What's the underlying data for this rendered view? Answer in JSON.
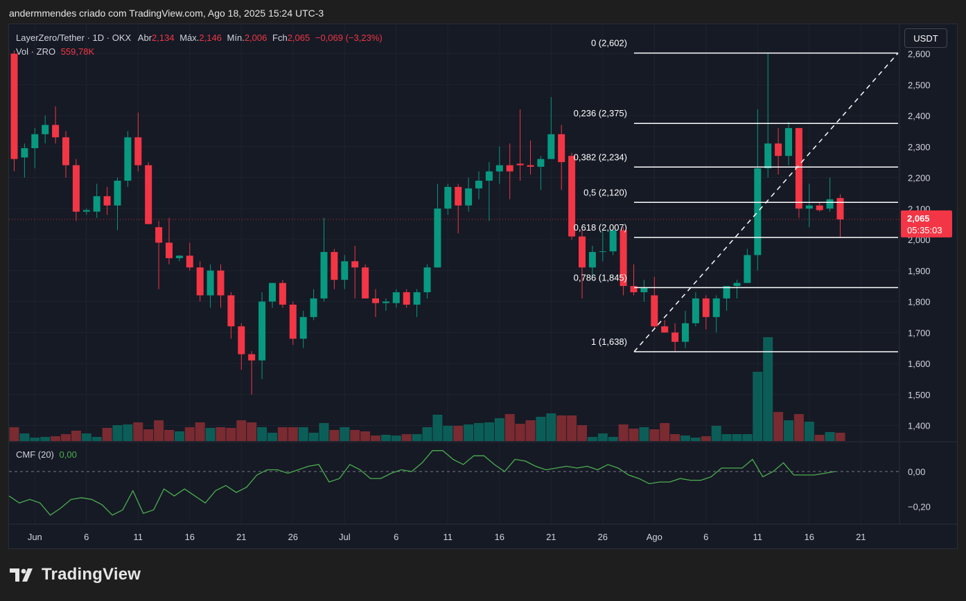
{
  "caption": "andermmendes criado com TradingView.com, Ago 18, 2025 15:24 UTC-3",
  "legend": {
    "symbol": "LayerZero/Tether · 1D · OKX",
    "open_label": "Abr",
    "open": "2,134",
    "high_label": "Máx.",
    "high": "2,146",
    "low_label": "Mín.",
    "low": "2,006",
    "close_label": "Fch",
    "close": "2,065",
    "change": "−0,069 (−3,23%)",
    "vol_label": "Vol · ZRO",
    "vol": "559,78K"
  },
  "currency_button": "USDT",
  "cmf": {
    "label": "CMF (20)",
    "value": "0,00"
  },
  "colors": {
    "up": "#089981",
    "down": "#f23645",
    "vol_up": "#0b5e57",
    "vol_down": "#7a2a31",
    "cmf": "#4caf50",
    "fib": "#ffffff",
    "background": "#161a25"
  },
  "logo_text": "TradingView",
  "chart_data": {
    "type": "candlestick",
    "price_axis": {
      "ylim": [
        1.335,
        2.62
      ],
      "ticks": [
        "2,600",
        "2,500",
        "2,400",
        "2,300",
        "2,200",
        "2,100",
        "2,000",
        "1,900",
        "1,800",
        "1,700",
        "1,600",
        "1,500",
        "1,400"
      ]
    },
    "last_price": {
      "value": "2,065",
      "countdown": "05:35:03"
    },
    "x_axis_labels": [
      "Jun",
      "6",
      "11",
      "16",
      "21",
      "26",
      "Jul",
      "6",
      "11",
      "16",
      "21",
      "26",
      "Ago",
      "6",
      "11",
      "16",
      "21"
    ],
    "candles": [
      {
        "o": 2.6,
        "h": 2.61,
        "l": 2.22,
        "c": 2.26
      },
      {
        "o": 2.265,
        "h": 2.31,
        "l": 2.2,
        "c": 2.295
      },
      {
        "o": 2.295,
        "h": 2.36,
        "l": 2.23,
        "c": 2.34
      },
      {
        "o": 2.34,
        "h": 2.4,
        "l": 2.31,
        "c": 2.37
      },
      {
        "o": 2.37,
        "h": 2.43,
        "l": 2.31,
        "c": 2.33
      },
      {
        "o": 2.33,
        "h": 2.35,
        "l": 2.2,
        "c": 2.24
      },
      {
        "o": 2.24,
        "h": 2.26,
        "l": 2.06,
        "c": 2.09
      },
      {
        "o": 2.09,
        "h": 2.1,
        "l": 2.08,
        "c": 2.095
      },
      {
        "o": 2.09,
        "h": 2.18,
        "l": 2.07,
        "c": 2.14
      },
      {
        "o": 2.14,
        "h": 2.17,
        "l": 2.08,
        "c": 2.11
      },
      {
        "o": 2.11,
        "h": 2.2,
        "l": 2.03,
        "c": 2.19
      },
      {
        "o": 2.19,
        "h": 2.35,
        "l": 2.17,
        "c": 2.33
      },
      {
        "o": 2.33,
        "h": 2.41,
        "l": 2.22,
        "c": 2.24
      },
      {
        "o": 2.24,
        "h": 2.25,
        "l": 2.05,
        "c": 2.05
      },
      {
        "o": 2.04,
        "h": 2.06,
        "l": 1.84,
        "c": 1.99
      },
      {
        "o": 1.99,
        "h": 2.07,
        "l": 1.92,
        "c": 1.94
      },
      {
        "o": 1.94,
        "h": 1.95,
        "l": 1.93,
        "c": 1.948
      },
      {
        "o": 1.948,
        "h": 1.99,
        "l": 1.9,
        "c": 1.91
      },
      {
        "o": 1.91,
        "h": 1.93,
        "l": 1.8,
        "c": 1.82
      },
      {
        "o": 1.82,
        "h": 1.92,
        "l": 1.78,
        "c": 1.9
      },
      {
        "o": 1.9,
        "h": 1.92,
        "l": 1.78,
        "c": 1.82
      },
      {
        "o": 1.82,
        "h": 1.83,
        "l": 1.68,
        "c": 1.72
      },
      {
        "o": 1.72,
        "h": 1.73,
        "l": 1.58,
        "c": 1.63
      },
      {
        "o": 1.63,
        "h": 1.64,
        "l": 1.5,
        "c": 1.61
      },
      {
        "o": 1.61,
        "h": 1.83,
        "l": 1.55,
        "c": 1.8
      },
      {
        "o": 1.8,
        "h": 1.86,
        "l": 1.78,
        "c": 1.86
      },
      {
        "o": 1.86,
        "h": 1.87,
        "l": 1.78,
        "c": 1.79
      },
      {
        "o": 1.79,
        "h": 1.8,
        "l": 1.66,
        "c": 1.68
      },
      {
        "o": 1.68,
        "h": 1.77,
        "l": 1.65,
        "c": 1.75
      },
      {
        "o": 1.75,
        "h": 1.84,
        "l": 1.74,
        "c": 1.81
      },
      {
        "o": 1.81,
        "h": 2.07,
        "l": 1.8,
        "c": 1.96
      },
      {
        "o": 1.96,
        "h": 1.97,
        "l": 1.84,
        "c": 1.87
      },
      {
        "o": 1.87,
        "h": 1.95,
        "l": 1.84,
        "c": 1.93
      },
      {
        "o": 1.93,
        "h": 1.98,
        "l": 1.81,
        "c": 1.91
      },
      {
        "o": 1.91,
        "h": 1.92,
        "l": 1.81,
        "c": 1.81
      },
      {
        "o": 1.81,
        "h": 1.84,
        "l": 1.75,
        "c": 1.795
      },
      {
        "o": 1.795,
        "h": 1.81,
        "l": 1.77,
        "c": 1.8
      },
      {
        "o": 1.795,
        "h": 1.84,
        "l": 1.78,
        "c": 1.83
      },
      {
        "o": 1.83,
        "h": 1.84,
        "l": 1.78,
        "c": 1.79
      },
      {
        "o": 1.79,
        "h": 1.84,
        "l": 1.75,
        "c": 1.83
      },
      {
        "o": 1.83,
        "h": 1.92,
        "l": 1.81,
        "c": 1.91
      },
      {
        "o": 1.91,
        "h": 2.18,
        "l": 1.91,
        "c": 2.1
      },
      {
        "o": 2.1,
        "h": 2.18,
        "l": 2.08,
        "c": 2.17
      },
      {
        "o": 2.17,
        "h": 2.18,
        "l": 2.02,
        "c": 2.11
      },
      {
        "o": 2.11,
        "h": 2.2,
        "l": 2.09,
        "c": 2.165
      },
      {
        "o": 2.165,
        "h": 2.22,
        "l": 2.13,
        "c": 2.19
      },
      {
        "o": 2.19,
        "h": 2.25,
        "l": 2.06,
        "c": 2.22
      },
      {
        "o": 2.22,
        "h": 2.3,
        "l": 2.18,
        "c": 2.24
      },
      {
        "o": 2.24,
        "h": 2.31,
        "l": 2.13,
        "c": 2.22
      },
      {
        "o": 2.245,
        "h": 2.42,
        "l": 2.19,
        "c": 2.24
      },
      {
        "o": 2.24,
        "h": 2.32,
        "l": 2.21,
        "c": 2.235
      },
      {
        "o": 2.235,
        "h": 2.27,
        "l": 2.16,
        "c": 2.26
      },
      {
        "o": 2.26,
        "h": 2.46,
        "l": 2.26,
        "c": 2.34
      },
      {
        "o": 2.34,
        "h": 2.37,
        "l": 2.16,
        "c": 2.25
      },
      {
        "o": 2.27,
        "h": 2.28,
        "l": 2.0,
        "c": 2.01
      },
      {
        "o": 2.01,
        "h": 2.03,
        "l": 1.81,
        "c": 1.91
      },
      {
        "o": 1.91,
        "h": 1.98,
        "l": 1.88,
        "c": 1.96
      },
      {
        "o": 1.96,
        "h": 2.03,
        "l": 1.93,
        "c": 1.962
      },
      {
        "o": 1.962,
        "h": 2.03,
        "l": 1.95,
        "c": 2.03
      },
      {
        "o": 2.03,
        "h": 2.04,
        "l": 1.82,
        "c": 1.85
      },
      {
        "o": 1.85,
        "h": 1.92,
        "l": 1.82,
        "c": 1.83
      },
      {
        "o": 1.83,
        "h": 1.87,
        "l": 1.8,
        "c": 1.845
      },
      {
        "o": 1.82,
        "h": 1.88,
        "l": 1.71,
        "c": 1.72
      },
      {
        "o": 1.72,
        "h": 1.74,
        "l": 1.7,
        "c": 1.7
      },
      {
        "o": 1.7,
        "h": 1.73,
        "l": 1.64,
        "c": 1.67
      },
      {
        "o": 1.67,
        "h": 1.77,
        "l": 1.65,
        "c": 1.73
      },
      {
        "o": 1.73,
        "h": 1.83,
        "l": 1.72,
        "c": 1.81
      },
      {
        "o": 1.81,
        "h": 1.82,
        "l": 1.71,
        "c": 1.75
      },
      {
        "o": 1.75,
        "h": 1.82,
        "l": 1.7,
        "c": 1.81
      },
      {
        "o": 1.81,
        "h": 1.85,
        "l": 1.77,
        "c": 1.85
      },
      {
        "o": 1.85,
        "h": 1.87,
        "l": 1.81,
        "c": 1.86
      },
      {
        "o": 1.86,
        "h": 1.97,
        "l": 1.86,
        "c": 1.95
      },
      {
        "o": 1.95,
        "h": 2.42,
        "l": 1.9,
        "c": 2.23
      },
      {
        "o": 2.23,
        "h": 2.6,
        "l": 2.2,
        "c": 2.31
      },
      {
        "o": 2.31,
        "h": 2.36,
        "l": 2.21,
        "c": 2.27
      },
      {
        "o": 2.27,
        "h": 2.38,
        "l": 2.24,
        "c": 2.36
      },
      {
        "o": 2.36,
        "h": 2.36,
        "l": 2.07,
        "c": 2.1
      },
      {
        "o": 2.1,
        "h": 2.18,
        "l": 2.04,
        "c": 2.11
      },
      {
        "o": 2.11,
        "h": 2.12,
        "l": 2.09,
        "c": 2.095
      },
      {
        "o": 2.1,
        "h": 2.2,
        "l": 2.09,
        "c": 2.13
      },
      {
        "o": 2.134,
        "h": 2.146,
        "l": 2.006,
        "c": 2.065
      }
    ],
    "volume_relative": [
      0.2,
      0.11,
      0.05,
      0.06,
      0.07,
      0.1,
      0.15,
      0.11,
      0.06,
      0.19,
      0.23,
      0.24,
      0.27,
      0.17,
      0.3,
      0.16,
      0.14,
      0.2,
      0.27,
      0.19,
      0.2,
      0.19,
      0.3,
      0.27,
      0.2,
      0.12,
      0.2,
      0.2,
      0.2,
      0.12,
      0.26,
      0.16,
      0.2,
      0.16,
      0.14,
      0.08,
      0.09,
      0.08,
      0.1,
      0.1,
      0.2,
      0.38,
      0.22,
      0.22,
      0.24,
      0.26,
      0.27,
      0.33,
      0.39,
      0.25,
      0.3,
      0.35,
      0.4,
      0.37,
      0.37,
      0.23,
      0.06,
      0.11,
      0.06,
      0.24,
      0.18,
      0.2,
      0.17,
      0.26,
      0.1,
      0.08,
      0.05,
      0.07,
      0.22,
      0.1,
      0.1,
      0.1,
      1.0,
      1.5,
      0.42,
      0.3,
      0.39,
      0.28,
      0.09,
      0.13,
      0.12
    ],
    "cmf_axis": {
      "ylim": [
        -0.3,
        0.16
      ],
      "ticks": [
        "0,00",
        "−0,20"
      ]
    },
    "cmf_values": [
      -0.14,
      -0.18,
      -0.16,
      -0.18,
      -0.25,
      -0.21,
      -0.16,
      -0.15,
      -0.16,
      -0.19,
      -0.25,
      -0.22,
      -0.11,
      -0.24,
      -0.22,
      -0.1,
      -0.14,
      -0.1,
      -0.14,
      -0.18,
      -0.11,
      -0.08,
      -0.12,
      -0.09,
      -0.02,
      0.01,
      0.01,
      -0.01,
      0.01,
      0.03,
      0.04,
      -0.06,
      -0.04,
      0.04,
      0.01,
      -0.04,
      -0.04,
      -0.01,
      0.01,
      0.0,
      0.05,
      0.12,
      0.12,
      0.07,
      0.04,
      0.09,
      0.09,
      0.04,
      0.0,
      0.07,
      0.06,
      0.03,
      0.01,
      0.02,
      0.03,
      0.02,
      0.03,
      0.01,
      0.04,
      0.02,
      -0.02,
      -0.04,
      -0.07,
      -0.06,
      -0.06,
      -0.04,
      -0.05,
      -0.05,
      -0.03,
      0.02,
      0.02,
      0.02,
      0.07,
      -0.03,
      0.0,
      0.05,
      -0.02,
      -0.02,
      -0.02,
      -0.01,
      0.0
    ],
    "fibonacci": {
      "levels": [
        {
          "label": "0 (2,602)",
          "value": 2.602
        },
        {
          "label": "0,236 (2,375)",
          "value": 2.375
        },
        {
          "label": "0,382 (2,234)",
          "value": 2.234
        },
        {
          "label": "0,5 (2,120)",
          "value": 2.12
        },
        {
          "label": "0,618 (2,007)",
          "value": 2.007
        },
        {
          "label": "0,786 (1,845)",
          "value": 1.845
        },
        {
          "label": "1 (1,638)",
          "value": 1.638
        }
      ],
      "trend_from": 1.638,
      "trend_to": 2.602
    },
    "grid": true
  }
}
